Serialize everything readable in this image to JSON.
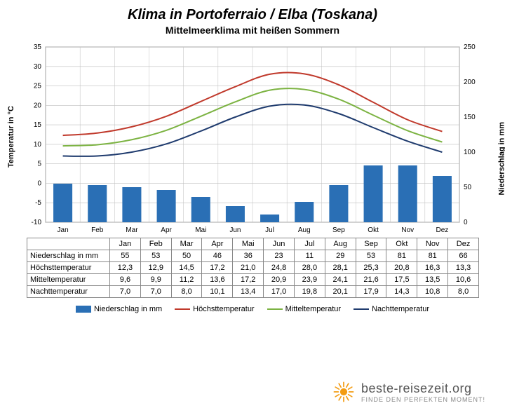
{
  "title": "Klima in Portoferraio / Elba (Toskana)",
  "subtitle": "Mittelmeerklima mit heißen Sommern",
  "chart": {
    "type": "bar+line",
    "months": [
      "Jan",
      "Feb",
      "Mar",
      "Apr",
      "Mai",
      "Jun",
      "Jul",
      "Aug",
      "Sep",
      "Okt",
      "Nov",
      "Dez"
    ],
    "left_axis": {
      "label": "Temperatur in °C",
      "min": -10,
      "max": 35,
      "step": 5
    },
    "right_axis": {
      "label": "Niederschlag in mm",
      "min": 0,
      "max": 250,
      "step": 50
    },
    "bar": {
      "label": "Niederschlag in mm",
      "values": [
        55,
        53,
        50,
        46,
        36,
        23,
        11,
        29,
        53,
        81,
        81,
        66
      ],
      "color": "#2a6fb5",
      "width": 0.55
    },
    "lines": [
      {
        "label": "Höchsttemperatur",
        "color": "#c0392b",
        "width": 2,
        "values": [
          12.3,
          12.9,
          14.5,
          17.2,
          21.0,
          24.8,
          28.0,
          28.1,
          25.3,
          20.8,
          16.3,
          13.3
        ]
      },
      {
        "label": "Mitteltemperatur",
        "color": "#7cb342",
        "width": 2,
        "values": [
          9.6,
          9.9,
          11.2,
          13.6,
          17.2,
          20.9,
          23.9,
          24.1,
          21.6,
          17.5,
          13.5,
          10.6
        ]
      },
      {
        "label": "Nachttemperatur",
        "color": "#1f3b6e",
        "width": 2,
        "values": [
          7.0,
          7.0,
          8.0,
          10.1,
          13.4,
          17.0,
          19.8,
          20.1,
          17.9,
          14.3,
          10.8,
          8.0
        ]
      }
    ],
    "grid_color": "#bfbfbf",
    "plot_border": "#888888",
    "background": "#ffffff"
  },
  "table": {
    "rows": [
      {
        "label": "Niederschlag in mm",
        "cells": [
          "55",
          "53",
          "50",
          "46",
          "36",
          "23",
          "11",
          "29",
          "53",
          "81",
          "81",
          "66"
        ]
      },
      {
        "label": "Höchsttemperatur",
        "cells": [
          "12,3",
          "12,9",
          "14,5",
          "17,2",
          "21,0",
          "24,8",
          "28,0",
          "28,1",
          "25,3",
          "20,8",
          "16,3",
          "13,3"
        ]
      },
      {
        "label": "Mitteltemperatur",
        "cells": [
          "9,6",
          "9,9",
          "11,2",
          "13,6",
          "17,2",
          "20,9",
          "23,9",
          "24,1",
          "21,6",
          "17,5",
          "13,5",
          "10,6"
        ]
      },
      {
        "label": "Nachttemperatur",
        "cells": [
          "7,0",
          "7,0",
          "8,0",
          "10,1",
          "13,4",
          "17,0",
          "19,8",
          "20,1",
          "17,9",
          "14,3",
          "10,8",
          "8,0"
        ]
      }
    ]
  },
  "legend": {
    "items": [
      {
        "label": "Niederschlag in mm",
        "type": "bar",
        "color": "#2a6fb5"
      },
      {
        "label": "Höchsttemperatur",
        "type": "line",
        "color": "#c0392b"
      },
      {
        "label": "Mitteltemperatur",
        "type": "line",
        "color": "#7cb342"
      },
      {
        "label": "Nachttemperatur",
        "type": "line",
        "color": "#1f3b6e"
      }
    ]
  },
  "footer": {
    "brand": "beste-reisezeit.org",
    "tagline": "FINDE DEN PERFEKTEN MOMENT!",
    "icon_color": "#f39c12"
  }
}
